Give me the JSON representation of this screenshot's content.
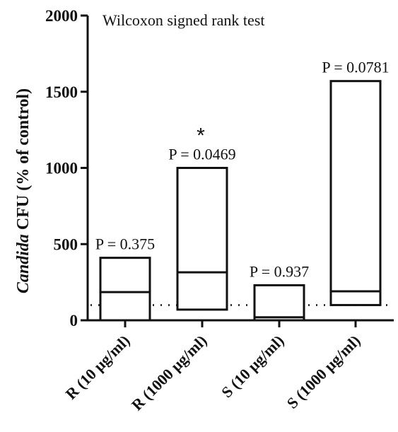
{
  "chart_data": {
    "type": "bar",
    "title": "",
    "annotation": "Wilcoxon signed rank test",
    "ylabel": {
      "italic": "Candida",
      "rest": " CFU (% of control)"
    },
    "xlabel": "",
    "ylim": [
      0,
      2000
    ],
    "yticks": [
      0,
      500,
      1000,
      1500,
      2000
    ],
    "reference_line": 100,
    "categories": [
      "R (10 µg/ml)",
      "R (1000 µg/ml)",
      "S (10 µg/ml)",
      "S (1000 µg/ml)"
    ],
    "series": [
      {
        "min": [
          0,
          70,
          0,
          100
        ],
        "median": [
          185,
          315,
          20,
          190
        ],
        "max": [
          410,
          1000,
          230,
          1570
        ]
      }
    ],
    "p_values": [
      "P = 0.375",
      "P = 0.0469",
      "P = 0.937",
      "P = 0.0781"
    ],
    "significance": [
      "",
      "*",
      "",
      ""
    ]
  }
}
